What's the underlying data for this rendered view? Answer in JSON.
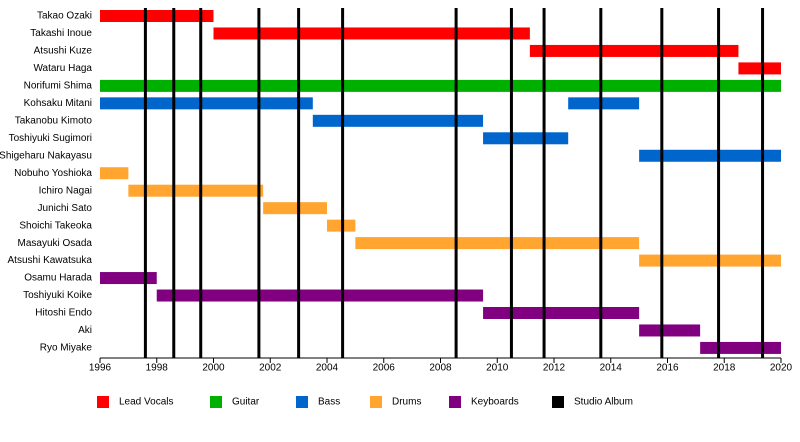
{
  "chart_data": {
    "type": "timeline",
    "categories": [
      "Takao Ozaki",
      "Takashi Inoue",
      "Atsushi Kuze",
      "Wataru Haga",
      "Norifumi Shima",
      "Kohsaku Mitani",
      "Takanobu Kimoto",
      "Toshiyuki Sugimori",
      "Shigeharu Nakayasu",
      "Nobuho Yoshioka",
      "Ichiro Nagai",
      "Junichi Sato",
      "Shoichi Takeoka",
      "Masayuki Osada",
      "Atsushi Kawatsuka",
      "Osamu Harada",
      "Toshiyuki Koike",
      "Hitoshi Endo",
      "Aki",
      "Ryo Miyake"
    ],
    "series": [
      {
        "name": "Lead Vocals",
        "color": "#ff0000",
        "values": [
          [
            [
              1996,
              2000
            ]
          ],
          [
            [
              2000,
              2011.15
            ]
          ],
          [
            [
              2011.15,
              2018.5
            ]
          ],
          [
            [
              2018.5,
              2020
            ]
          ],
          null,
          null,
          null,
          null,
          null,
          null,
          null,
          null,
          null,
          null,
          null,
          null,
          null,
          null,
          null,
          null
        ]
      },
      {
        "name": "Guitar",
        "color": "#00b000",
        "values": [
          null,
          null,
          null,
          null,
          [
            [
              1996,
              2020
            ]
          ],
          null,
          null,
          null,
          null,
          null,
          null,
          null,
          null,
          null,
          null,
          null,
          null,
          null,
          null,
          null
        ]
      },
      {
        "name": "Bass",
        "color": "#0066cc",
        "values": [
          null,
          null,
          null,
          null,
          null,
          [
            [
              1996,
              2003.5
            ],
            [
              2012.5,
              2015
            ]
          ],
          [
            [
              2003.5,
              2009.5
            ]
          ],
          [
            [
              2009.5,
              2012.5
            ]
          ],
          [
            [
              2015,
              2020
            ]
          ],
          null,
          null,
          null,
          null,
          null,
          null,
          null,
          null,
          null,
          null,
          null
        ]
      },
      {
        "name": "Drums",
        "color": "#ffa530",
        "values": [
          null,
          null,
          null,
          null,
          null,
          null,
          null,
          null,
          null,
          [
            [
              1996,
              1997
            ]
          ],
          [
            [
              1997,
              2001.75
            ]
          ],
          [
            [
              2001.75,
              2004
            ]
          ],
          [
            [
              2004,
              2005
            ]
          ],
          [
            [
              2005,
              2015
            ]
          ],
          [
            [
              2015,
              2020
            ]
          ],
          null,
          null,
          null,
          null,
          null
        ]
      },
      {
        "name": "Keyboards",
        "color": "#800080",
        "values": [
          null,
          null,
          null,
          null,
          null,
          null,
          null,
          null,
          null,
          null,
          null,
          null,
          null,
          null,
          null,
          [
            [
              1996,
              1998
            ]
          ],
          [
            [
              1998,
              2009.5
            ]
          ],
          [
            [
              2009.5,
              2015
            ]
          ],
          [
            [
              2015,
              2017.15
            ]
          ],
          [
            [
              2017.15,
              2020
            ]
          ]
        ]
      }
    ],
    "markers": {
      "name": "Studio Album",
      "color": "#000000",
      "x": [
        1997.6,
        1998.6,
        1999.55,
        2001.6,
        2003.0,
        2004.55,
        2008.55,
        2010.5,
        2011.65,
        2013.65,
        2015.8,
        2017.8,
        2019.35
      ]
    },
    "xlim": [
      1996,
      2020
    ],
    "xticks": [
      1996,
      1998,
      2000,
      2002,
      2004,
      2006,
      2008,
      2010,
      2012,
      2014,
      2016,
      2018,
      2020
    ]
  }
}
